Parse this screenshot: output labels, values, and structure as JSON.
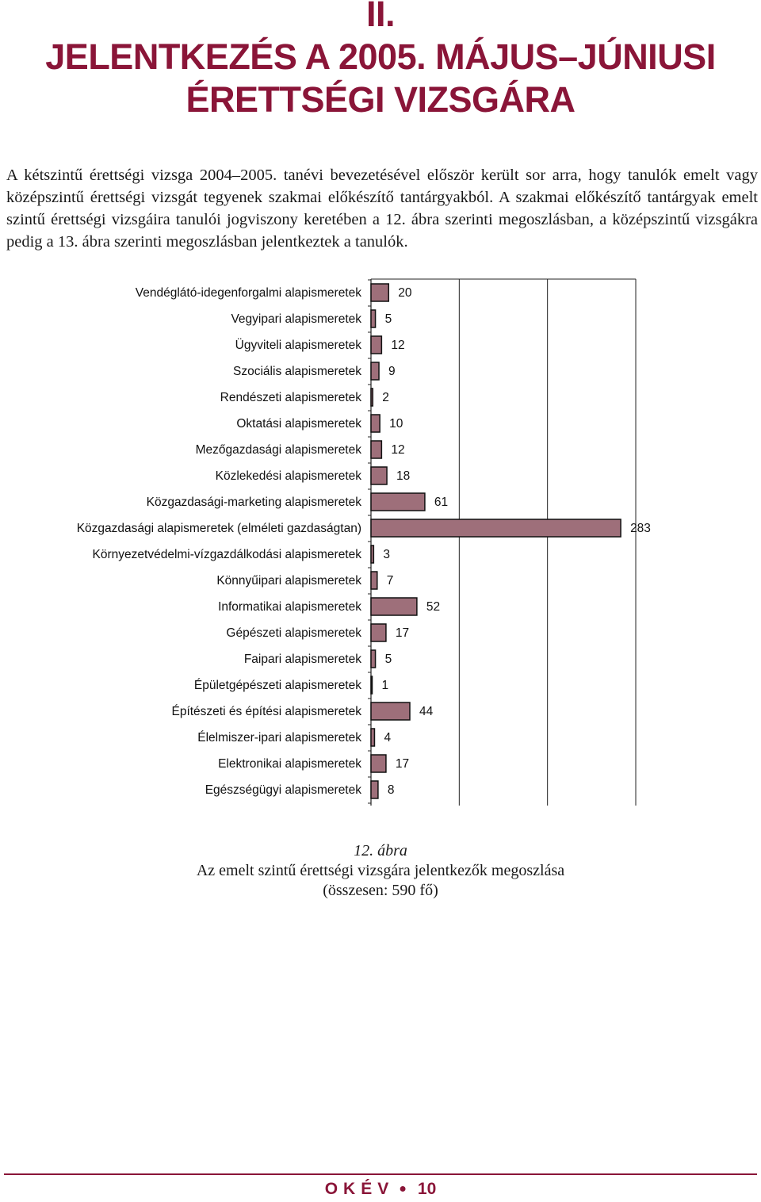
{
  "heading": {
    "number": "II.",
    "line1": "JELENTKEZÉS A 2005. MÁJUS–JÚNIUSI",
    "line2": "ÉRETTSÉGI VIZSGÁRA"
  },
  "intro": "A kétszintű érettségi vizsga 2004–2005. tanévi bevezetésével először került sor arra, hogy tanulók emelt vagy középszintű érettségi vizsgát tegyenek szakmai előkészítő tantárgyakból. A szakmai előkészítő tantárgyak emelt szintű érettségi vizsgáira tanulói jogviszony keretében a 12. ábra szerinti megoszlásban, a középszintű vizsgákra pedig a 13. ábra szerinti megoszlásban jelentkeztek a tanulók.",
  "chart_data": {
    "type": "bar",
    "orientation": "horizontal",
    "categories": [
      "Vendéglátó-idegenforgalmi alapismeretek",
      "Vegyipari alapismeretek",
      "Ügyviteli alapismeretek",
      "Szociális alapismeretek",
      "Rendészeti alapismeretek",
      "Oktatási alapismeretek",
      "Mezőgazdasági alapismeretek",
      "Közlekedési alapismeretek",
      "Közgazdasági-marketing alapismeretek",
      "Közgazdasági alapismeretek (elméleti gazdaságtan)",
      "Környezetvédelmi-vízgazdálkodási alapismeretek",
      "Könnyűipari alapismeretek",
      "Informatikai alapismeretek",
      "Gépészeti alapismeretek",
      "Faipari alapismeretek",
      "Épületgépészeti alapismeretek",
      "Építészeti és építési alapismeretek",
      "Élelmiszer-ipari alapismeretek",
      "Elektronikai alapismeretek",
      "Egészségügyi alapismeretek"
    ],
    "values": [
      20,
      5,
      12,
      9,
      2,
      10,
      12,
      18,
      61,
      283,
      3,
      7,
      52,
      17,
      5,
      1,
      44,
      4,
      17,
      8
    ],
    "xlim": [
      0,
      300
    ],
    "xticks": [
      0,
      100,
      200,
      300
    ],
    "title": "",
    "xlabel": "",
    "ylabel": "",
    "grid": "vertical",
    "legend": "none",
    "bar_color": "#9e6f7a"
  },
  "caption": {
    "number": "12. ábra",
    "line1": "Az emelt szintű érettségi vizsgára jelentkezők megoszlása",
    "line2": "(összesen: 590 fő)"
  },
  "footer": {
    "org": "OKÉV",
    "page": "10"
  }
}
